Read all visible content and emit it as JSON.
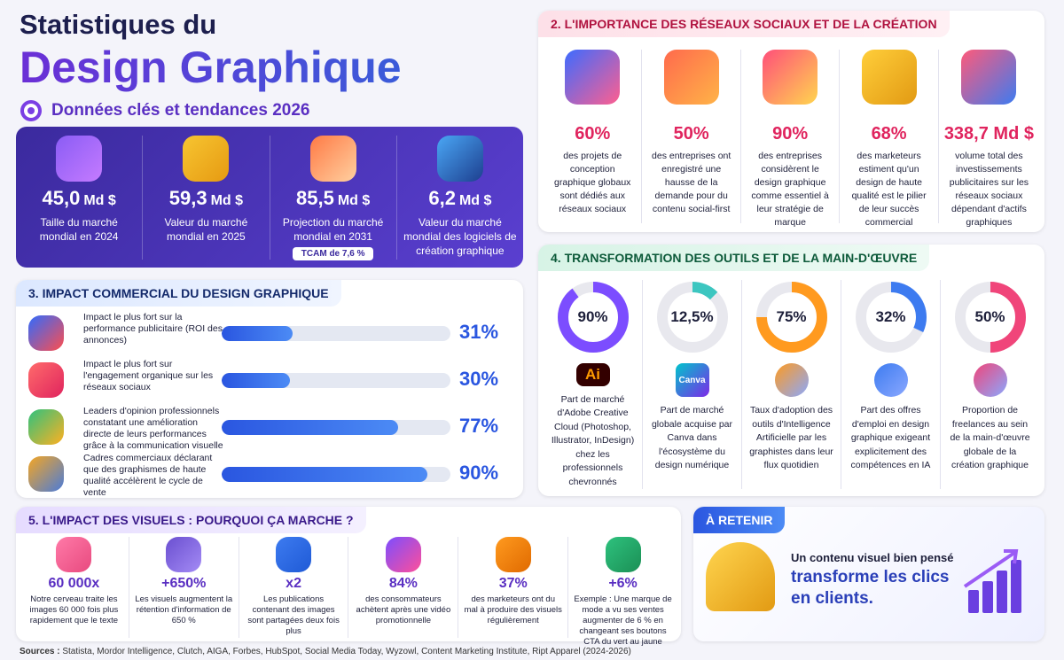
{
  "header": {
    "title_line1": "Statistiques du",
    "title_line2": "Design Graphique",
    "subtitle": "Données clés et tendances 2026"
  },
  "market": {
    "items": [
      {
        "amount": "45,0",
        "unit": "Md $",
        "label": "Taille du marché mondial en 2024"
      },
      {
        "amount": "59,3",
        "unit": "Md $",
        "label": "Valeur du marché mondial en 2025"
      },
      {
        "amount": "85,5",
        "unit": "Md $",
        "label": "Projection du marché mondial en 2031",
        "badge": "TCAM de 7,6 %"
      },
      {
        "amount": "6,2",
        "unit": "Md $",
        "label": "Valeur du marché mondial des logiciels de création graphique"
      }
    ]
  },
  "section2": {
    "title": "2. L'IMPORTANCE DES RÉSEAUX SOCIAUX ET DE LA CRÉATION",
    "items": [
      {
        "value": "60%",
        "text": "des projets de conception graphique globaux sont dédiés aux réseaux sociaux"
      },
      {
        "value": "50%",
        "text": "des entreprises ont enregistré une hausse de la demande pour du contenu social-first"
      },
      {
        "value": "90%",
        "text": "des entreprises considèrent le design graphique comme essentiel à leur stratégie de marque"
      },
      {
        "value": "68%",
        "text": "des marketeurs estiment qu'un design de haute qualité est le pilier de leur succès commercial"
      },
      {
        "value": "338,7 Md $",
        "text": "volume total des investissements publicitaires sur les réseaux sociaux dépendant d'actifs graphiques"
      }
    ]
  },
  "section3": {
    "title": "3. IMPACT COMMERCIAL DU DESIGN GRAPHIQUE",
    "rows": [
      {
        "text": "Impact le plus fort sur la performance publicitaire (ROI des annonces)",
        "value": 31,
        "label": "31%"
      },
      {
        "text": "Impact le plus fort sur l'engagement organique sur les réseaux sociaux",
        "value": 30,
        "label": "30%"
      },
      {
        "text": "Leaders d'opinion professionnels constatant une amélioration directe de leurs performances grâce à la communication visuelle",
        "value": 77,
        "label": "77%"
      },
      {
        "text": "Cadres commerciaux déclarant que des graphismes de haute qualité accélèrent le cycle de vente",
        "value": 90,
        "label": "90%"
      }
    ]
  },
  "section4": {
    "title": "4. TRANSFORMATION DES OUTILS ET DE LA MAIN-D'ŒUVRE",
    "items": [
      {
        "value": 90,
        "label": "90%",
        "color": "#7c4dff",
        "logo": "Ai",
        "text": "Part de marché d'Adobe Creative Cloud (Photoshop, Illustrator, InDesign) chez les professionnels chevronnés"
      },
      {
        "value": 12.5,
        "label": "12,5%",
        "color": "#3cc6c0",
        "logo": "Canva",
        "text": "Part de marché globale acquise par Canva dans l'écosystème du design numérique"
      },
      {
        "value": 75,
        "label": "75%",
        "color": "#ff9a1f",
        "text": "Taux d'adoption des outils d'Intelligence Artificielle par les graphistes dans leur flux quotidien"
      },
      {
        "value": 32,
        "label": "32%",
        "color": "#3d7bf0",
        "text": "Part des offres d'emploi en design graphique exigeant explicitement des compétences en IA"
      },
      {
        "value": 50,
        "label": "50%",
        "color": "#f0457a",
        "text": "Proportion de freelances au sein de la main-d'œuvre globale de la création graphique"
      }
    ]
  },
  "section5": {
    "title": "5. L'IMPACT DES VISUELS : POURQUOI ÇA MARCHE ?",
    "items": [
      {
        "value": "60 000x",
        "text": "Notre cerveau traite les images 60 000 fois plus rapidement que le texte"
      },
      {
        "value": "+650%",
        "text": "Les visuels augmentent la rétention d'information de 650 %"
      },
      {
        "value": "x2",
        "text": "Les publications contenant des images sont partagées deux fois plus"
      },
      {
        "value": "84%",
        "text": "des consommateurs achètent après une vidéo promotionnelle"
      },
      {
        "value": "37%",
        "text": "des marketeurs ont du mal à produire des visuels régulièrement"
      },
      {
        "value": "+6%",
        "text": "Exemple : Une marque de mode a vu ses ventes augmenter de 6 % en changeant ses boutons CTA du vert au jaune"
      }
    ]
  },
  "retain": {
    "title": "À RETENIR",
    "text1": "Un contenu visuel bien pensé",
    "text2": "transforme les clics en clients."
  },
  "sources": {
    "label": "Sources :",
    "text": "Statista, Mordor Intelligence, Clutch, AIGA, Forbes, HubSpot, Social Media Today, Wyzowl, Content Marketing Institute, Ript Apparel (2024-2026)"
  }
}
